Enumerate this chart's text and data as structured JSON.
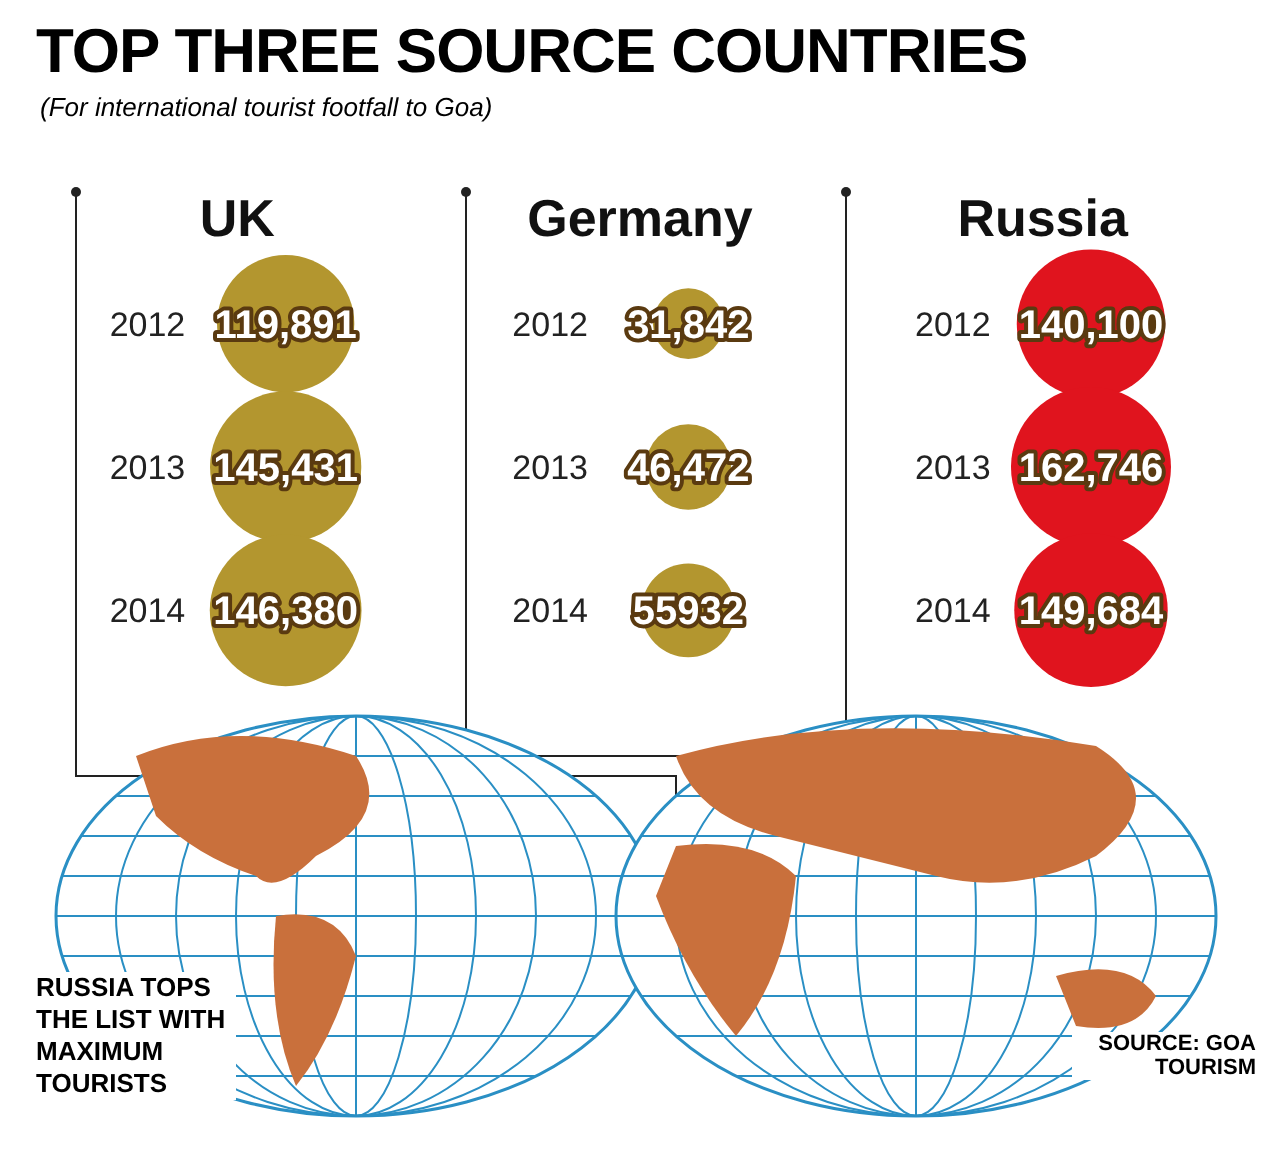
{
  "chart_data": {
    "type": "other",
    "title": "TOP THREE SOURCE COUNTRIES",
    "subtitle": "(For international tourist footfall to Goa)",
    "categories": [
      "UK",
      "Germany",
      "Russia"
    ],
    "series": [
      {
        "name": "2012",
        "colors": [
          "#b3962f",
          "#b3962f",
          "#e0141e"
        ],
        "values": [
          119891,
          31842,
          140100
        ],
        "value_labels": [
          "119,891",
          "31,842",
          "140,100"
        ]
      },
      {
        "name": "2013",
        "colors": [
          "#b3962f",
          "#b3962f",
          "#e0141e"
        ],
        "values": [
          145431,
          46472,
          162746
        ],
        "value_labels": [
          "145,431",
          "46,472",
          "162,746"
        ]
      },
      {
        "name": "2014",
        "colors": [
          "#b3962f",
          "#b3962f",
          "#e0141e"
        ],
        "values": [
          146380,
          55932,
          149684
        ],
        "value_labels": [
          "146,380",
          "55932",
          "149,684"
        ]
      }
    ],
    "annotations": [
      "RUSSIA TOPS THE LIST WITH MAXIMUM TOURISTS",
      "SOURCE: GOA TOURISM"
    ]
  }
}
